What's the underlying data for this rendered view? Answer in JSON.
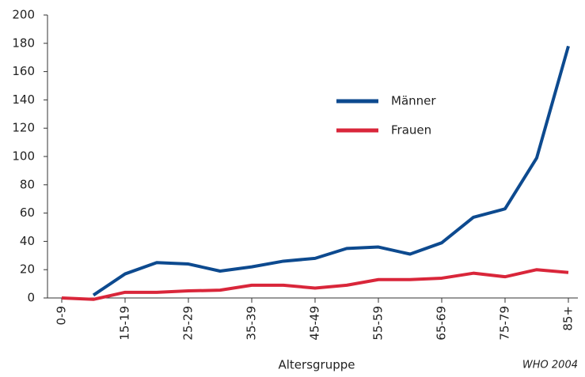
{
  "chart_data": {
    "type": "line",
    "x_label": "Altersgruppe",
    "source": "WHO 2004",
    "categories": [
      "0-9",
      null,
      "15-19",
      null,
      "25-29",
      null,
      "35-39",
      null,
      "45-49",
      null,
      "55-59",
      null,
      "65-69",
      null,
      "75-79",
      null,
      "85+"
    ],
    "series": [
      {
        "name": "Männer",
        "color": "#0d4a8f",
        "values": [
          null,
          2,
          17,
          25,
          24,
          19,
          22,
          26,
          28,
          35,
          36,
          31,
          39,
          57,
          63,
          99,
          178
        ]
      },
      {
        "name": "Frauen",
        "color": "#d9263a",
        "values": [
          0,
          -1,
          4,
          4,
          5,
          5.5,
          9,
          9,
          7,
          9,
          13,
          13,
          14,
          17.5,
          15,
          20,
          18
        ]
      }
    ],
    "ylim": [
      0,
      200
    ],
    "yticks": [
      0,
      20,
      40,
      60,
      80,
      100,
      120,
      140,
      160,
      180,
      200
    ]
  }
}
